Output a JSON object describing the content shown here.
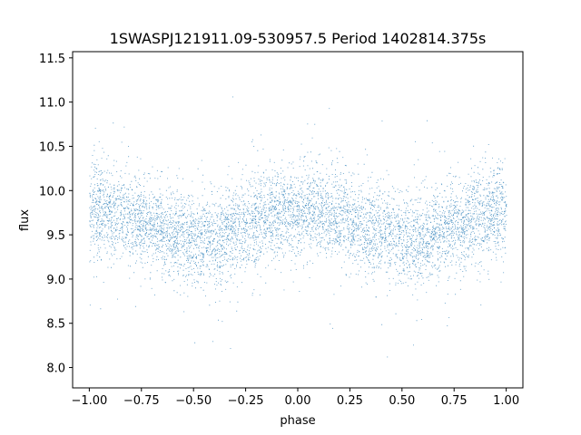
{
  "chart_data": {
    "type": "scatter",
    "title": "1SWASPJ121911.09-530957.5 Period 1402814.375s",
    "xlabel": "phase",
    "ylabel": "flux",
    "xlim": [
      -1.08,
      1.08
    ],
    "ylim": [
      7.77,
      11.57
    ],
    "xticks": [
      -1.0,
      -0.75,
      -0.5,
      -0.25,
      0.0,
      0.25,
      0.5,
      0.75,
      1.0
    ],
    "xtick_labels": [
      "−1.00",
      "−0.75",
      "−0.50",
      "−0.25",
      "0.00",
      "0.25",
      "0.50",
      "0.75",
      "1.00"
    ],
    "yticks": [
      8.0,
      8.5,
      9.0,
      9.5,
      10.0,
      10.5,
      11.0,
      11.5
    ],
    "ytick_labels": [
      "8.0",
      "8.5",
      "9.0",
      "9.5",
      "10.0",
      "10.5",
      "11.0",
      "11.5"
    ],
    "grid": false,
    "marker_color": "#1f77b4",
    "point_count_approx": 30000,
    "x_range": [
      -1.0,
      1.0
    ],
    "y_core_range": [
      9.0,
      10.4
    ],
    "y_full_range": [
      7.95,
      11.1
    ],
    "mean_flux_by_phase": {
      "x": [
        -1.0,
        -0.9,
        -0.8,
        -0.7,
        -0.6,
        -0.5,
        -0.4,
        -0.3,
        -0.2,
        -0.1,
        0.0,
        0.1,
        0.2,
        0.3,
        0.4,
        0.5,
        0.6,
        0.7,
        0.8,
        0.9,
        1.0
      ],
      "y": [
        9.8,
        9.75,
        9.72,
        9.6,
        9.55,
        9.45,
        9.45,
        9.55,
        9.65,
        9.72,
        9.8,
        9.75,
        9.72,
        9.6,
        9.55,
        9.45,
        9.45,
        9.55,
        9.65,
        9.72,
        9.8
      ]
    }
  }
}
